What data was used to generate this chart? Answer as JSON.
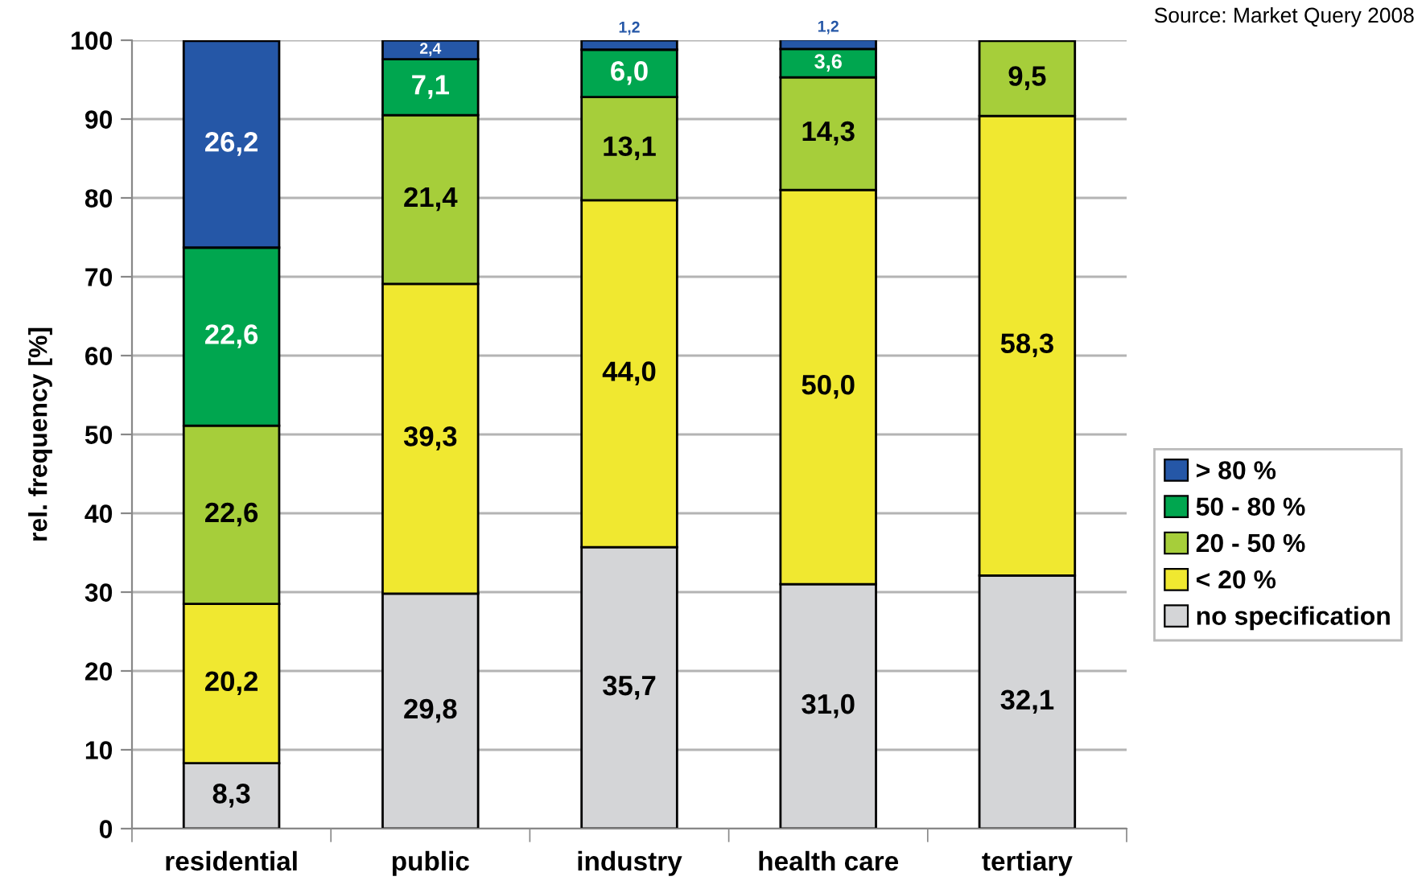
{
  "chart_data": {
    "type": "bar",
    "stacked": true,
    "categories": [
      "residential",
      "public",
      "industry",
      "health care",
      "tertiary"
    ],
    "ylabel": "rel. frequency [%]",
    "ylim": [
      0,
      100
    ],
    "yticks": [
      0,
      10,
      20,
      30,
      40,
      50,
      60,
      70,
      80,
      90,
      100
    ],
    "grid": "y",
    "legend": "right",
    "annotations": [
      "Source: Market Query 2008"
    ],
    "series": [
      {
        "name": "no specification",
        "color": "#d4d5d7",
        "values": [
          8.3,
          29.8,
          35.7,
          31.0,
          32.1
        ],
        "value_labels": [
          "8,3",
          "29,8",
          "35,7",
          "31,0",
          "32,1"
        ]
      },
      {
        "name": "< 20 %",
        "color": "#f0e830",
        "values": [
          20.2,
          39.3,
          44.0,
          50.0,
          58.3
        ],
        "value_labels": [
          "20,2",
          "39,3",
          "44,0",
          "50,0",
          "58,3"
        ]
      },
      {
        "name": "20 - 50 %",
        "color": "#a6ce3a",
        "values": [
          22.6,
          21.4,
          13.1,
          14.3,
          9.5
        ],
        "value_labels": [
          "22,6",
          "21,4",
          "13,1",
          "14,3",
          "9,5"
        ]
      },
      {
        "name": "50 - 80 %",
        "color": "#00a64f",
        "values": [
          22.6,
          7.1,
          6.0,
          3.6,
          null
        ],
        "value_labels": [
          "22,6",
          "7,1",
          "6,0",
          "3,6",
          null
        ]
      },
      {
        "name": "> 80 %",
        "color": "#2557a7",
        "values": [
          26.2,
          2.4,
          1.2,
          1.2,
          null
        ],
        "value_labels": [
          "26,2",
          "2,4",
          "1,2",
          "1,2",
          null
        ]
      }
    ]
  }
}
